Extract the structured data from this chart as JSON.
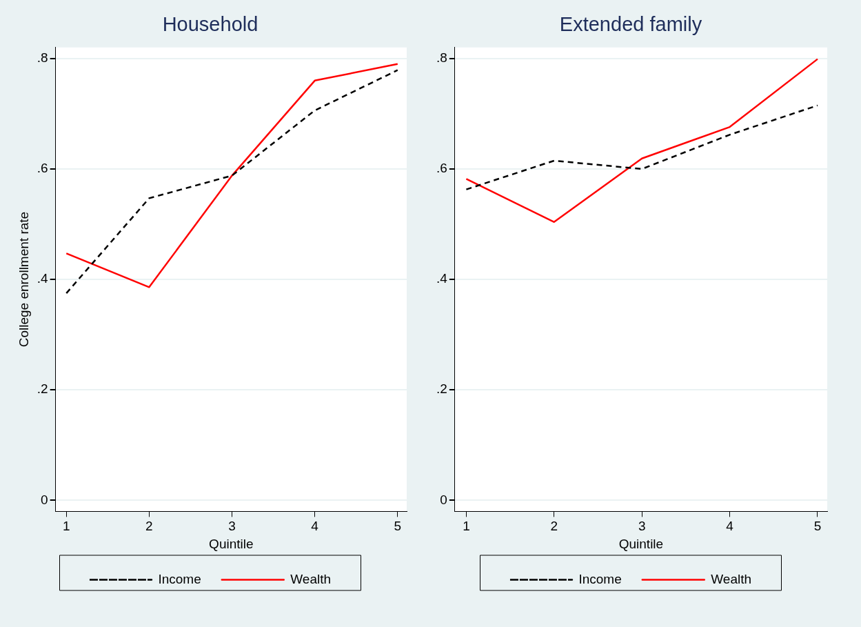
{
  "chart_data": [
    {
      "type": "line",
      "title": "Household",
      "xlabel": "Quintile",
      "ylabel": "College enrollment rate",
      "x": [
        1,
        2,
        3,
        4,
        5
      ],
      "xlim": [
        0.87,
        5.11
      ],
      "xticks": [
        1,
        2,
        3,
        4,
        5
      ],
      "ylim": [
        -0.02,
        0.82
      ],
      "yticks": [
        0,
        {
          "value": 0.2,
          "label": ".2"
        },
        {
          "value": 0.4,
          "label": ".4"
        },
        {
          "value": 0.6,
          "label": ".6"
        },
        {
          "value": 0.8,
          "label": ".8"
        }
      ],
      "grid": "y",
      "legend": "bottom",
      "marker": "none",
      "series": [
        {
          "name": "Income",
          "color": "#000000",
          "line_style": "dashed",
          "values": [
            0.375,
            0.547,
            0.588,
            0.706,
            0.779
          ]
        },
        {
          "name": "Wealth",
          "color": "#ff0000",
          "line_style": "solid",
          "values": [
            0.447,
            0.386,
            0.588,
            0.76,
            0.79
          ]
        }
      ]
    },
    {
      "type": "line",
      "title": "Extended family",
      "xlabel": "Quintile",
      "x": [
        1,
        2,
        3,
        4,
        5
      ],
      "xlim": [
        0.87,
        5.11
      ],
      "xticks": [
        1,
        2,
        3,
        4,
        5
      ],
      "ylim": [
        -0.02,
        0.82
      ],
      "yticks": [
        0,
        {
          "value": 0.2,
          "label": ".2"
        },
        {
          "value": 0.4,
          "label": ".4"
        },
        {
          "value": 0.6,
          "label": ".6"
        },
        {
          "value": 0.8,
          "label": ".8"
        }
      ],
      "grid": "y",
      "legend": "bottom",
      "marker": "none",
      "series": [
        {
          "name": "Income",
          "color": "#000000",
          "line_style": "dashed",
          "values": [
            0.563,
            0.615,
            0.6,
            0.662,
            0.715
          ]
        },
        {
          "name": "Wealth",
          "color": "#ff0000",
          "line_style": "solid",
          "values": [
            0.582,
            0.504,
            0.619,
            0.676,
            0.799
          ]
        }
      ]
    }
  ]
}
